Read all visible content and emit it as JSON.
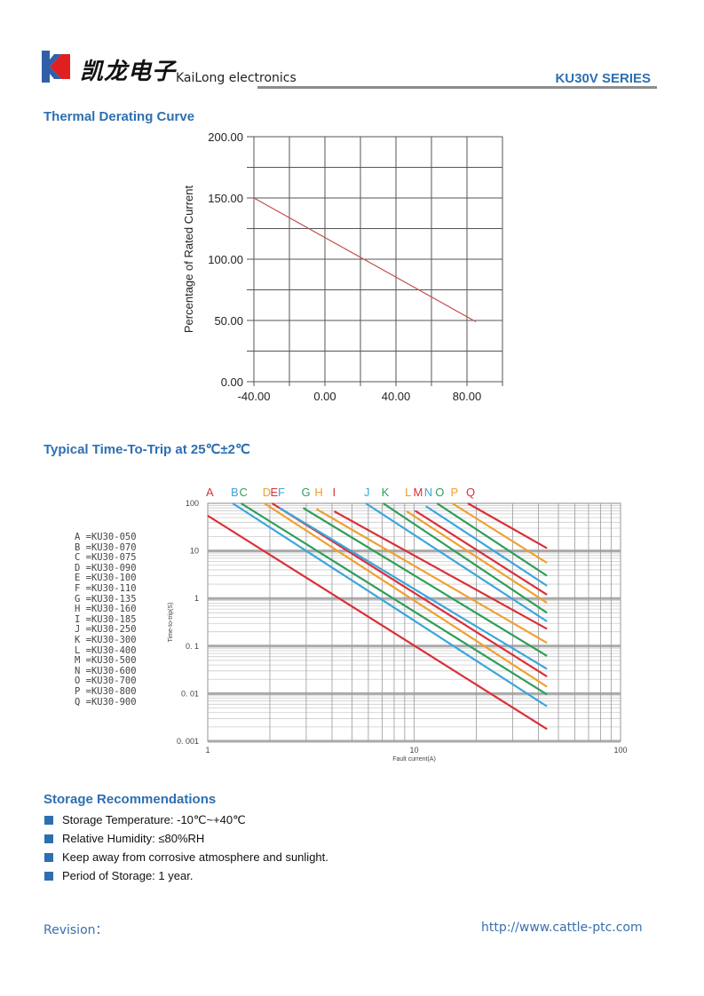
{
  "header": {
    "logo_text": "凯龙电子",
    "brand": "KaiLong electronics",
    "series": "KU30V SERIES"
  },
  "sections": {
    "thermal_title": "Thermal Derating Curve",
    "trip_title": "Typical Time-To-Trip at 25℃±2℃",
    "storage_title": "Storage Recommendations"
  },
  "storage_items": [
    "Storage Temperature: -10℃~+40℃",
    "Relative Humidity: ≤80%RH",
    "Keep away from corrosive atmosphere and sunlight.",
    "Period of Storage: 1 year."
  ],
  "footer": {
    "revision": "Revision：",
    "url": "http://www.cattle-ptc.com"
  },
  "colors": {
    "accent": "#2f6fb0",
    "red": "#d9303a",
    "blue": "#3aa6dc",
    "green": "#2e9e5a",
    "orange": "#f0a030"
  },
  "chart_data": [
    {
      "type": "line",
      "title": "",
      "xlabel": "",
      "ylabel": "Percentage of Rated Current",
      "xlim": [
        -40,
        100
      ],
      "ylim": [
        0,
        200
      ],
      "grid": true,
      "x_ticks": [
        "-40.00",
        "0.00",
        "40.00",
        "80.00"
      ],
      "y_ticks": [
        "0.00",
        "50.00",
        "100.00",
        "150.00",
        "200.00"
      ],
      "series": [
        {
          "points": [
            [
              -40,
              150
            ],
            [
              85,
              49
            ]
          ],
          "color": "#c0504d"
        }
      ]
    },
    {
      "type": "line",
      "xscale": "log",
      "yscale": "log",
      "xlabel": "Fault current(A)",
      "ylabel": "Time-to-trip(S)",
      "xlim": [
        1,
        100
      ],
      "ylim": [
        0.001,
        100
      ],
      "grid": true,
      "x_ticks": [
        "1",
        "10",
        "100"
      ],
      "y_ticks": [
        "100",
        "10",
        "1",
        "0. 1",
        "0. 01",
        "0. 001"
      ],
      "series": [
        {
          "name": "A",
          "model": "KU30-050",
          "color": "red",
          "points": [
            [
              1,
              55
            ],
            [
              44,
              0.0018
            ]
          ]
        },
        {
          "name": "B",
          "model": "KU30-070",
          "color": "blue",
          "points": [
            [
              1.32,
              100
            ],
            [
              44,
              0.0054
            ]
          ]
        },
        {
          "name": "C",
          "model": "KU30-075",
          "color": "green",
          "points": [
            [
              1.45,
              100
            ],
            [
              44,
              0.0096
            ]
          ]
        },
        {
          "name": "D",
          "model": "KU30-090",
          "color": "orange",
          "points": [
            [
              1.88,
              100
            ],
            [
              44,
              0.014
            ]
          ]
        },
        {
          "name": "E",
          "model": "KU30-100",
          "color": "red",
          "points": [
            [
              2.05,
              100
            ],
            [
              44,
              0.023
            ]
          ]
        },
        {
          "name": "F",
          "model": "KU30-110",
          "color": "blue",
          "points": [
            [
              2.23,
              80
            ],
            [
              44,
              0.033
            ]
          ]
        },
        {
          "name": "G",
          "model": "KU30-135",
          "color": "green",
          "points": [
            [
              2.9,
              80
            ],
            [
              44,
              0.062
            ]
          ]
        },
        {
          "name": "H",
          "model": "KU30-160",
          "color": "orange",
          "points": [
            [
              3.36,
              76
            ],
            [
              44,
              0.117
            ]
          ]
        },
        {
          "name": "I",
          "model": "KU30-185",
          "color": "red",
          "points": [
            [
              4.1,
              68
            ],
            [
              44,
              0.23
            ]
          ]
        },
        {
          "name": "J",
          "model": "KU30-250",
          "color": "blue",
          "points": [
            [
              5.83,
              100
            ],
            [
              44,
              0.33
            ]
          ]
        },
        {
          "name": "K",
          "model": "KU30-300",
          "color": "green",
          "points": [
            [
              7.08,
              100
            ],
            [
              44,
              0.5
            ]
          ]
        },
        {
          "name": "L",
          "model": "KU30-400",
          "color": "orange",
          "points": [
            [
              9.2,
              68
            ],
            [
              44,
              0.81
            ]
          ]
        },
        {
          "name": "M",
          "model": "KU30-500",
          "color": "red",
          "points": [
            [
              10.1,
              70
            ],
            [
              44,
              1.2
            ]
          ]
        },
        {
          "name": "N",
          "model": "KU30-600",
          "color": "blue",
          "points": [
            [
              11.4,
              87
            ],
            [
              44,
              1.85
            ]
          ]
        },
        {
          "name": "O",
          "model": "KU30-700",
          "color": "green",
          "points": [
            [
              12.9,
              100
            ],
            [
              44,
              3.0
            ]
          ]
        },
        {
          "name": "P",
          "model": "KU30-800",
          "color": "orange",
          "points": [
            [
              15.3,
              100
            ],
            [
              44,
              5.6
            ]
          ]
        },
        {
          "name": "Q",
          "model": "KU30-900",
          "color": "red",
          "points": [
            [
              18.2,
              100
            ],
            [
              44,
              11.4
            ]
          ]
        }
      ]
    }
  ]
}
